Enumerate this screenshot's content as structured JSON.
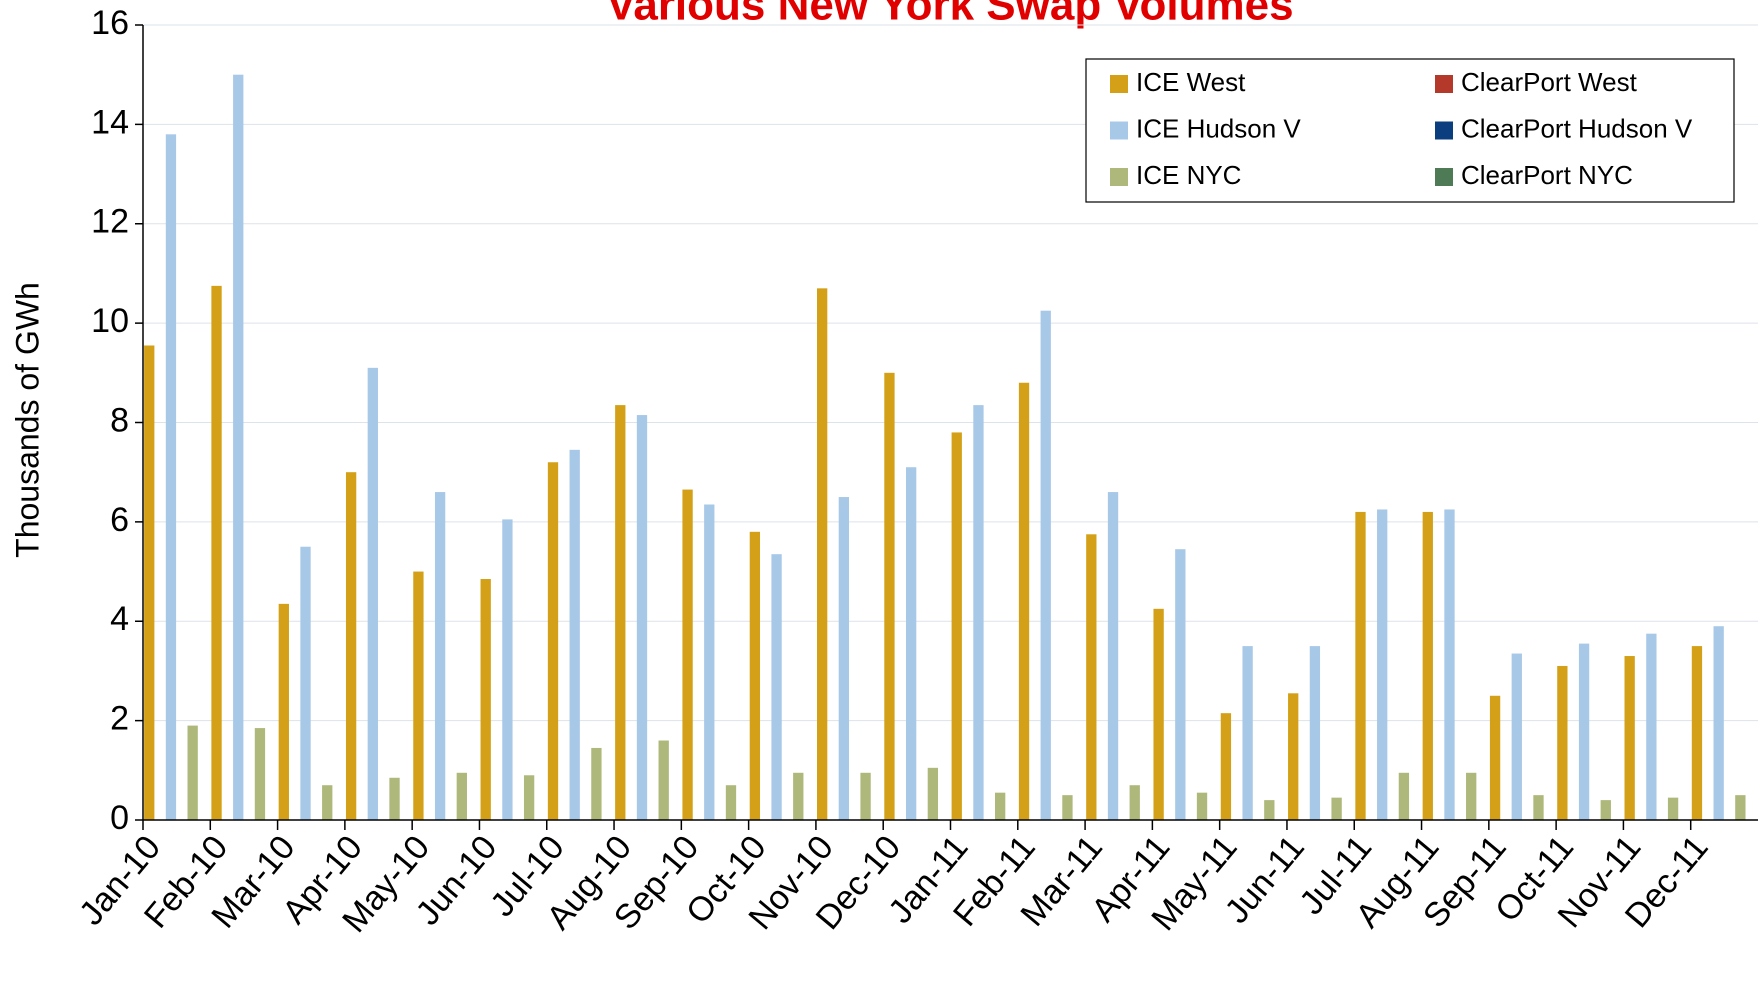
{
  "chart_data": {
    "type": "bar",
    "title": "Various New York Swap Volumes",
    "y_label": "Thousands of GWh",
    "categories": [
      "Jan-10",
      "Feb-10",
      "Mar-10",
      "Apr-10",
      "May-10",
      "Jun-10",
      "Jul-10",
      "Aug-10",
      "Sep-10",
      "Oct-10",
      "Nov-10",
      "Dec-10",
      "Jan-11",
      "Feb-11",
      "Mar-11",
      "Apr-11",
      "May-11",
      "Jun-11",
      "Jul-11",
      "Aug-11",
      "Sep-11",
      "Oct-11",
      "Nov-11",
      "Dec-11"
    ],
    "series": [
      {
        "name": "ICE West",
        "color": "#d4a017",
        "values": [
          9.55,
          10.75,
          4.35,
          7.0,
          5.0,
          4.85,
          7.2,
          8.35,
          6.65,
          5.8,
          10.7,
          9.0,
          7.8,
          8.8,
          5.75,
          4.25,
          2.15,
          2.55,
          6.2,
          6.2,
          2.5,
          3.1,
          3.3,
          3.5
        ]
      },
      {
        "name": "ClearPort West",
        "color": "#b5392b",
        "values": [
          0,
          0,
          0,
          0,
          0,
          0,
          0,
          0,
          0,
          0,
          0,
          0,
          0,
          0,
          0,
          0,
          0,
          0,
          0,
          0,
          0,
          0,
          0,
          0
        ]
      },
      {
        "name": "ICE Hudson V",
        "color": "#a8c8e8",
        "values": [
          13.8,
          15.0,
          5.5,
          9.1,
          6.6,
          6.05,
          7.45,
          8.15,
          6.35,
          5.35,
          6.5,
          7.1,
          8.35,
          10.25,
          6.6,
          5.45,
          3.5,
          3.5,
          6.25,
          6.25,
          3.35,
          3.55,
          3.75,
          3.9
        ]
      },
      {
        "name": "ClearPort Hudson V",
        "color": "#0b3e7e",
        "values": [
          0,
          0,
          0,
          0,
          0,
          0,
          0,
          0,
          0,
          0,
          0,
          0,
          0,
          0,
          0,
          0,
          0,
          0,
          0,
          0,
          0,
          0,
          0,
          0
        ]
      },
      {
        "name": "ICE NYC",
        "color": "#adb87a",
        "values": [
          1.9,
          1.85,
          0.7,
          0.85,
          0.95,
          0.9,
          1.45,
          1.6,
          0.7,
          0.95,
          0.95,
          1.05,
          0.55,
          0.5,
          0.7,
          0.55,
          0.4,
          0.45,
          0.95,
          0.95,
          0.5,
          0.4,
          0.45,
          0.5
        ]
      },
      {
        "name": "ClearPort NYC",
        "color": "#4e7a55",
        "values": [
          0,
          0,
          0,
          0,
          0,
          0,
          0,
          0,
          0,
          0,
          0,
          0,
          0,
          0,
          0,
          0,
          0,
          0,
          0,
          0,
          0,
          0,
          0,
          0
        ]
      }
    ],
    "ylim": [
      0,
      16
    ],
    "yticks": [
      0,
      2,
      4,
      6,
      8,
      10,
      12,
      14,
      16
    ],
    "grid": true,
    "legend": "top-right"
  }
}
